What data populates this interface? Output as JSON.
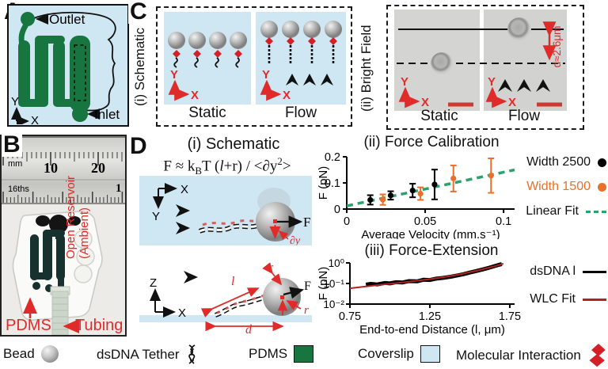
{
  "colors": {
    "coverslip_blue": "#cfe7f2",
    "pdms_green": "#17753f",
    "annotation_red": "#e02b2b",
    "diamond_red": "#d62027",
    "orange_series": "#e8702a",
    "fit_green": "#2aa36a",
    "wlc_red": "#b22222",
    "brightfield_gray": "#d4d4d2"
  },
  "panelA": {
    "label": "A",
    "outlet": "Outlet",
    "inlet": "Inlet",
    "axis_y": "Y",
    "axis_x": "X"
  },
  "panelB": {
    "label": "B",
    "ruler": {
      "mm": "mm",
      "n10": "10",
      "n20": "20",
      "sixteenths": "16ths",
      "n1": "1"
    },
    "reservoir_line1": "Open Reservoir",
    "reservoir_line2": "(Ambient)",
    "pdms": "PDMS",
    "tubing_arrow": "←",
    "tubing": "Tubing"
  },
  "panelC": {
    "label": "C",
    "i": {
      "side_label": "(i) Schematic",
      "static": "Static",
      "flow": "Flow",
      "axis_y": "Y",
      "axis_x": "X"
    },
    "ii": {
      "side_label": "(ii) Bright Field",
      "static": "Static",
      "flow": "Flow",
      "axis_y": "Y",
      "axis_x": "X",
      "distance": "d≈2.6μm"
    }
  },
  "panelD": {
    "label": "D",
    "schematic_title": "(i) Schematic",
    "formula": {
      "f": "F ≈ k",
      "sub": "B",
      "t": "T (",
      "l": "l",
      "mid": "+r) / <",
      "dy": "∂y",
      "sup": "2",
      "end": ">"
    },
    "top": {
      "axis_x": "X",
      "axis_y": "Y",
      "force": "F",
      "dy": "∂y"
    },
    "side": {
      "axis_z": "Z",
      "axis_x": "X",
      "force": "F",
      "l": "l",
      "r_top": "r",
      "r_right": "r",
      "d": "d"
    }
  },
  "chart_data": [
    {
      "type": "scatter",
      "title": "(ii) Force Calibration",
      "xlabel": "Average Velocity (mm.s⁻¹)",
      "ylabel": "F (pN)",
      "xlim": [
        0,
        0.107
      ],
      "ylim": [
        0,
        0.2
      ],
      "xticks": [
        0,
        0.05,
        0.1
      ],
      "xtick_labels": [
        "0",
        "0.05",
        "0.1"
      ],
      "yticks": [
        0,
        0.1,
        0.2
      ],
      "ytick_labels": [
        "0",
        "0.1",
        "0.2"
      ],
      "grid": false,
      "legend_position": "right",
      "series": [
        {
          "name": "Width 2500",
          "color": "#000000",
          "marker": "circle",
          "points": [
            [
              0.015,
              0.035,
              0.018
            ],
            [
              0.028,
              0.052,
              0.016
            ],
            [
              0.042,
              0.071,
              0.026
            ],
            [
              0.056,
              0.094,
              0.057
            ]
          ]
        },
        {
          "name": "Width 1500",
          "color": "#e8702a",
          "marker": "circle",
          "points": [
            [
              0.023,
              0.036,
              0.02
            ],
            [
              0.047,
              0.059,
              0.024
            ],
            [
              0.068,
              0.117,
              0.05
            ],
            [
              0.092,
              0.128,
              0.066
            ]
          ]
        },
        {
          "name": "Linear Fit",
          "color": "#2aa36a",
          "style": "dashed",
          "line": [
            [
              0,
              0.012
            ],
            [
              0.107,
              0.15
            ]
          ]
        }
      ]
    },
    {
      "type": "line",
      "title": "(iii) Force-Extension",
      "xlabel": "End-to-end Distance (l, μm)",
      "ylabel": "F (pN)",
      "xlim": [
        0.75,
        1.78
      ],
      "ylog": [
        -2,
        0
      ],
      "xticks": [
        0.75,
        1.25,
        1.75
      ],
      "xtick_labels": [
        "0.75",
        "1.25",
        "1.75"
      ],
      "ytick_values": [
        1,
        0.1,
        0.01
      ],
      "ytick_labels": [
        "10⁰",
        "10⁻¹",
        "10⁻²"
      ],
      "grid": false,
      "legend_position": "right",
      "series": [
        {
          "name": "dsDNA l",
          "color": "#000000",
          "width": 5,
          "points": [
            [
              0.85,
              0.088
            ],
            [
              0.88,
              0.096
            ],
            [
              0.92,
              0.09
            ],
            [
              0.97,
              0.106
            ],
            [
              1.0,
              0.101
            ],
            [
              1.04,
              0.116
            ],
            [
              1.08,
              0.112
            ],
            [
              1.12,
              0.131
            ],
            [
              1.17,
              0.127
            ],
            [
              1.21,
              0.152
            ],
            [
              1.25,
              0.148
            ],
            [
              1.29,
              0.172
            ],
            [
              1.33,
              0.186
            ],
            [
              1.38,
              0.212
            ],
            [
              1.42,
              0.243
            ],
            [
              1.46,
              0.282
            ],
            [
              1.5,
              0.34
            ],
            [
              1.54,
              0.4
            ],
            [
              1.58,
              0.48
            ],
            [
              1.62,
              0.58
            ],
            [
              1.66,
              0.72
            ],
            [
              1.7,
              0.88
            ]
          ]
        },
        {
          "name": "WLC Fit",
          "color": "#b22222",
          "width": 2,
          "points": [
            [
              0.75,
              0.058
            ],
            [
              0.85,
              0.072
            ],
            [
              0.95,
              0.088
            ],
            [
              1.05,
              0.106
            ],
            [
              1.15,
              0.13
            ],
            [
              1.25,
              0.162
            ],
            [
              1.35,
              0.21
            ],
            [
              1.45,
              0.29
            ],
            [
              1.55,
              0.43
            ],
            [
              1.65,
              0.67
            ],
            [
              1.71,
              0.92
            ]
          ]
        }
      ]
    }
  ],
  "bottom_legend": {
    "bead": "Bead",
    "dsdna_tether": "dsDNA Tether",
    "pdms": "PDMS",
    "coverslip": "Coverslip",
    "molecular_interaction": "Molecular Interaction"
  }
}
